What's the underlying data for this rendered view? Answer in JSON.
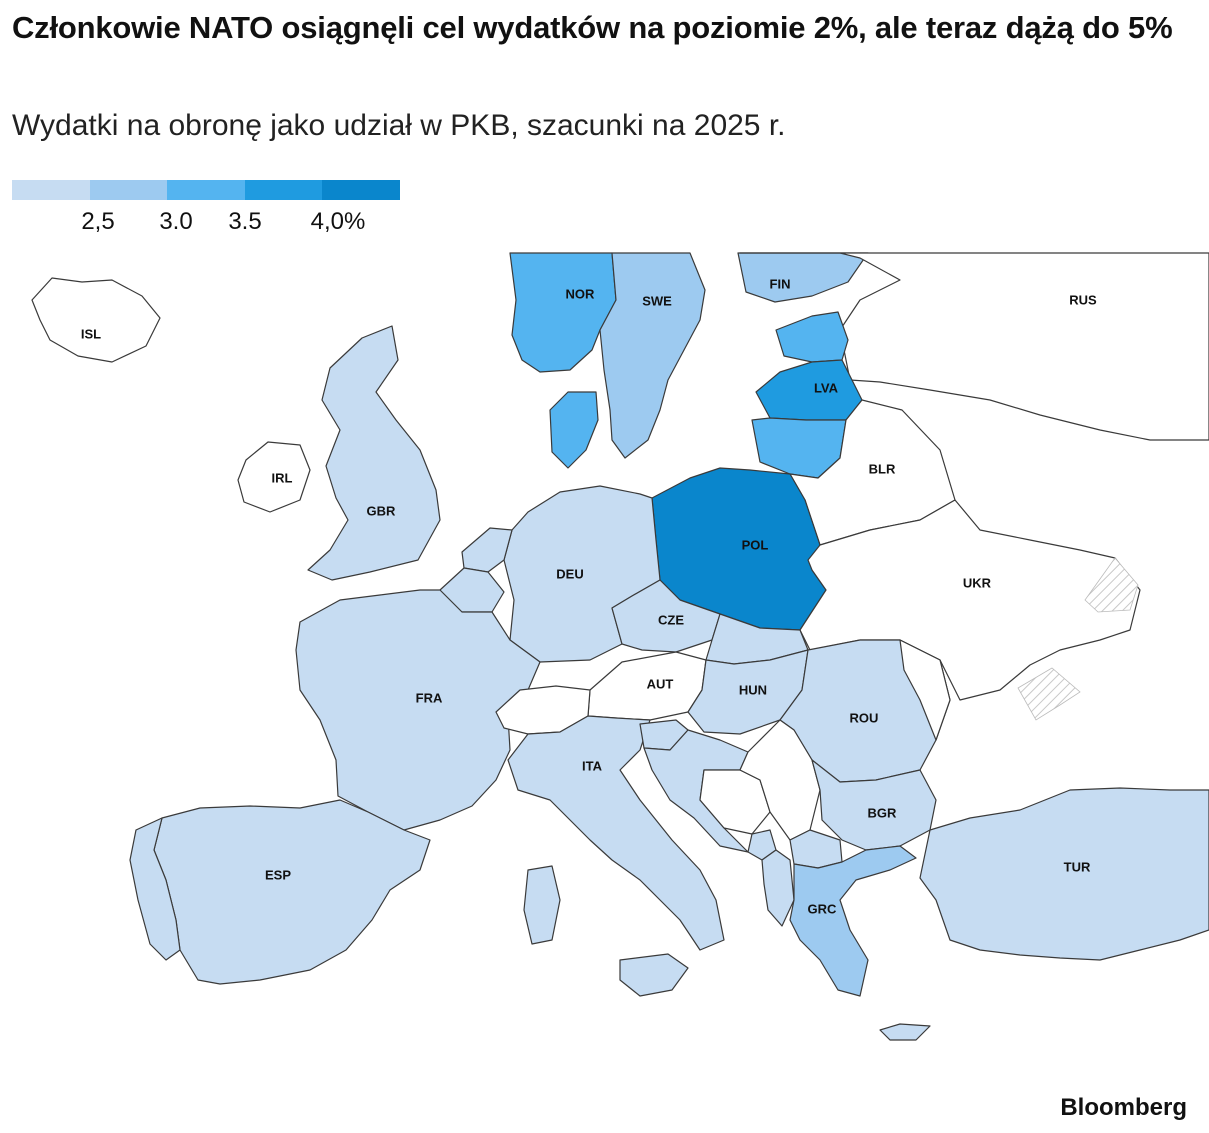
{
  "header": {
    "title": "Członkowie NATO osiągnęli cel wydatków na poziomie 2%, ale teraz dążą do 5%",
    "subtitle": "Wydatki na obronę jako udział w PKB, szacunki na 2025 r."
  },
  "legend": {
    "colors": [
      "#c6dcf2",
      "#9dcaf0",
      "#54b4f0",
      "#1f9be0",
      "#0a86cc"
    ],
    "ticks": [
      "2,5",
      "3.0",
      "3.5",
      "4,0%"
    ]
  },
  "colors": {
    "no_data": "#ffffff",
    "border": "#3a3a3a",
    "hatch": "#cccccc"
  },
  "countries": [
    {
      "code": "ISL",
      "label": "ISL",
      "tier": null
    },
    {
      "code": "NOR",
      "label": "NOR",
      "tier": 2
    },
    {
      "code": "SWE",
      "label": "SWE",
      "tier": 1
    },
    {
      "code": "FIN",
      "label": "FIN",
      "tier": 1
    },
    {
      "code": "RUS",
      "label": "RUS",
      "tier": null
    },
    {
      "code": "EST",
      "label": "",
      "tier": 2
    },
    {
      "code": "LVA",
      "label": "LVA",
      "tier": 3
    },
    {
      "code": "LTU",
      "label": "",
      "tier": 2
    },
    {
      "code": "DNK",
      "label": "",
      "tier": 2
    },
    {
      "code": "IRL",
      "label": "IRL",
      "tier": null
    },
    {
      "code": "GBR",
      "label": "GBR",
      "tier": 0
    },
    {
      "code": "BLR",
      "label": "BLR",
      "tier": null
    },
    {
      "code": "POL",
      "label": "POL",
      "tier": 4
    },
    {
      "code": "DEU",
      "label": "DEU",
      "tier": 0
    },
    {
      "code": "NLD",
      "label": "",
      "tier": 0
    },
    {
      "code": "BEL",
      "label": "",
      "tier": 0
    },
    {
      "code": "UKR",
      "label": "UKR",
      "tier": null
    },
    {
      "code": "CZE",
      "label": "CZE",
      "tier": 0
    },
    {
      "code": "SVK",
      "label": "",
      "tier": 0
    },
    {
      "code": "FRA",
      "label": "FRA",
      "tier": 0
    },
    {
      "code": "AUT",
      "label": "AUT",
      "tier": null
    },
    {
      "code": "CHE",
      "label": "",
      "tier": null
    },
    {
      "code": "HUN",
      "label": "HUN",
      "tier": 0
    },
    {
      "code": "ROU",
      "label": "ROU",
      "tier": 0
    },
    {
      "code": "MDA",
      "label": "",
      "tier": null
    },
    {
      "code": "ITA",
      "label": "ITA",
      "tier": 0
    },
    {
      "code": "SVN",
      "label": "",
      "tier": 0
    },
    {
      "code": "HRV",
      "label": "",
      "tier": 0
    },
    {
      "code": "BIH",
      "label": "",
      "tier": null
    },
    {
      "code": "SRB",
      "label": "",
      "tier": null
    },
    {
      "code": "MNE",
      "label": "",
      "tier": 0
    },
    {
      "code": "ALB",
      "label": "",
      "tier": 0
    },
    {
      "code": "MKD",
      "label": "",
      "tier": 0
    },
    {
      "code": "BGR",
      "label": "BGR",
      "tier": 0
    },
    {
      "code": "ESP",
      "label": "ESP",
      "tier": 0
    },
    {
      "code": "PRT",
      "label": "",
      "tier": 0
    },
    {
      "code": "GRC",
      "label": "GRC",
      "tier": 1
    },
    {
      "code": "TUR",
      "label": "TUR",
      "tier": 0
    },
    {
      "code": "CYP",
      "label": "",
      "tier": 0
    }
  ],
  "source": "Bloomberg"
}
